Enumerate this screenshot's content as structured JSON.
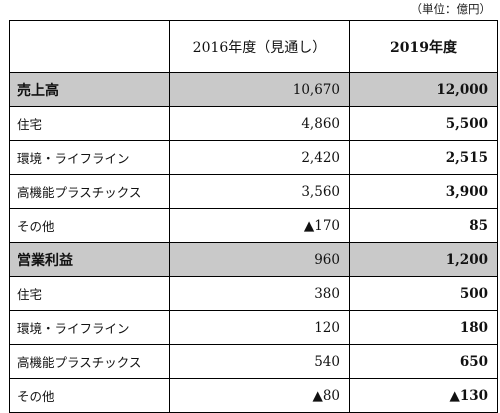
{
  "unit_note": "（単位：億円）",
  "table": {
    "header": {
      "label": "",
      "col1": "2016年度（見通し）",
      "col2": "2019年度"
    },
    "rows": [
      {
        "label": "売上高",
        "v2016": "10,670",
        "v2019": "12,000"
      },
      {
        "label": "住宅",
        "v2016": "4,860",
        "v2019": "5,500"
      },
      {
        "label": "環境・ライフライン",
        "v2016": "2,420",
        "v2019": "2,515"
      },
      {
        "label": "高機能プラスチックス",
        "v2016": "3,560",
        "v2019": "3,900"
      },
      {
        "label": "その他",
        "v2016": "▲170",
        "v2019": "85"
      },
      {
        "label": "営業利益",
        "v2016": "960",
        "v2019": "1,200"
      },
      {
        "label": "住宅",
        "v2016": "380",
        "v2019": "500"
      },
      {
        "label": "環境・ライフライン",
        "v2016": "120",
        "v2019": "180"
      },
      {
        "label": "高機能プラスチックス",
        "v2016": "540",
        "v2019": "650"
      },
      {
        "label": "その他",
        "v2016": "▲80",
        "v2019": "▲130"
      }
    ]
  },
  "colors": {
    "section_bg": "#c9c9c9",
    "border": "#000000"
  }
}
